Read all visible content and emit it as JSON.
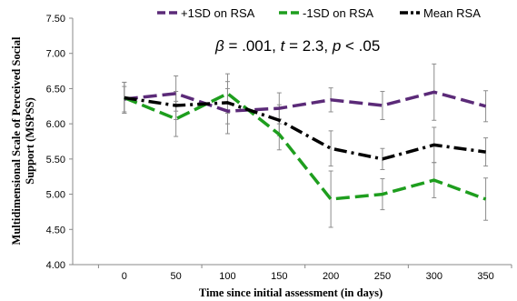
{
  "chart_data": {
    "type": "line",
    "x": [
      0,
      50,
      100,
      150,
      200,
      250,
      300,
      350
    ],
    "xlabel": "Time since initial assessment (in days)",
    "ylabel_lines": [
      "Multidimensional Scale of Perceived Social",
      "Support (MSPSS)"
    ],
    "ylim": [
      4.0,
      7.5
    ],
    "xlim": [
      -50,
      375
    ],
    "yticks": [
      "4.00",
      "4.50",
      "5.00",
      "5.50",
      "6.00",
      "6.50",
      "7.00",
      "7.50"
    ],
    "xticks": [
      "0",
      "50",
      "100",
      "150",
      "200",
      "250",
      "300",
      "350"
    ],
    "grid": false,
    "legend_position": "top",
    "annotation": {
      "beta_symbol": "β",
      "beta_value": " = .001, ",
      "t_symbol": "t",
      "t_value": " = 2.3, ",
      "p_symbol": "p",
      "p_value": " < .05"
    },
    "series": [
      {
        "name": "+1SD on RSA",
        "color": "#5b2a78",
        "dash": "long",
        "values": [
          6.35,
          6.43,
          6.18,
          6.22,
          6.34,
          6.26,
          6.45,
          6.25
        ],
        "errors": [
          0.18,
          0.25,
          0.32,
          0.22,
          0.17,
          0.2,
          0.4,
          0.22
        ]
      },
      {
        "name": "-1SD on RSA",
        "color": "#1e9e1e",
        "dash": "long",
        "values": [
          6.37,
          6.07,
          6.43,
          5.85,
          4.93,
          5.0,
          5.2,
          4.93
        ],
        "errors": [
          0.22,
          0.25,
          0.28,
          0.22,
          0.4,
          0.22,
          0.25,
          0.3
        ]
      },
      {
        "name": "Mean RSA",
        "color": "#000000",
        "dash": "dashdot",
        "values": [
          6.37,
          6.26,
          6.3,
          6.05,
          5.65,
          5.5,
          5.7,
          5.6
        ],
        "errors": [
          0.22,
          0.2,
          0.3,
          0.22,
          0.25,
          0.15,
          0.25,
          0.2
        ]
      }
    ]
  }
}
